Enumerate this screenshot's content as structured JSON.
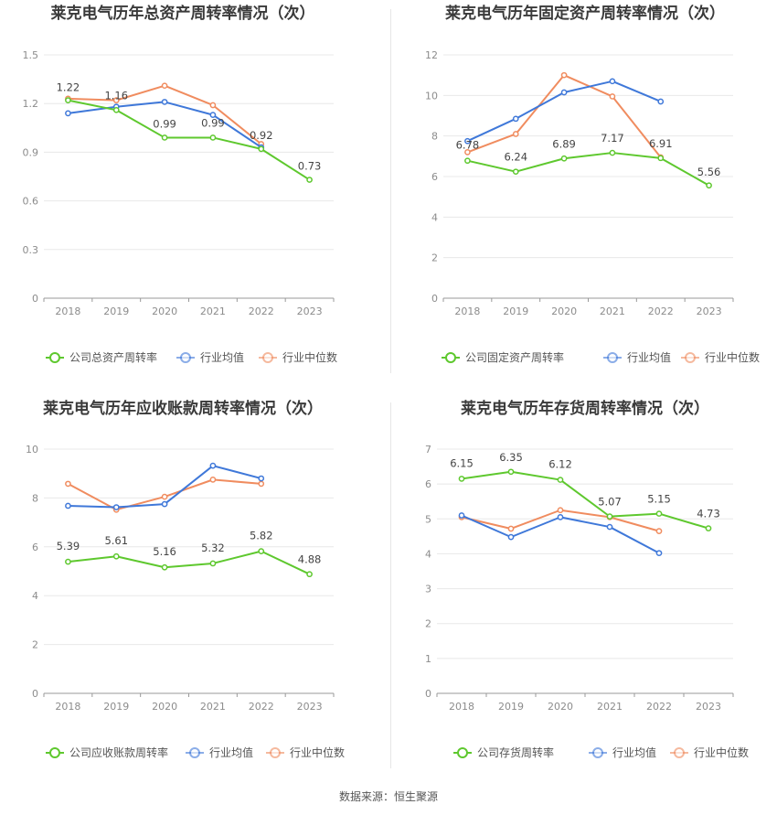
{
  "colors": {
    "company": "#5ec82e",
    "industry_avg": "#3f78d9",
    "industry_median": "#f08c5f",
    "grid": "#e8e8e8",
    "axis": "#999999"
  },
  "source": "数据来源：恒生聚源",
  "chart_data": [
    {
      "type": "line",
      "title": "莱克电气历年总资产周转率情况（次）",
      "categories": [
        "2018",
        "2019",
        "2020",
        "2021",
        "2022",
        "2023"
      ],
      "ylim": [
        0,
        1.5
      ],
      "yticks": [
        "0",
        "0.3",
        "0.6",
        "0.9",
        "1.2",
        "1.5"
      ],
      "grid": true,
      "legend_position": "bottom",
      "series": [
        {
          "name": "公司总资产周转率",
          "role": "company",
          "values": [
            1.22,
            1.16,
            0.99,
            0.99,
            0.92,
            0.73
          ],
          "labels": [
            "1.22",
            "1.16",
            "0.99",
            "0.99",
            "0.92",
            "0.73"
          ]
        },
        {
          "name": "行业均值",
          "role": "industry_avg",
          "values": [
            1.14,
            1.18,
            1.21,
            1.13,
            0.93,
            null
          ]
        },
        {
          "name": "行业中位数",
          "role": "industry_median",
          "values": [
            1.23,
            1.22,
            1.31,
            1.19,
            0.95,
            null
          ]
        }
      ]
    },
    {
      "type": "line",
      "title": "莱克电气历年固定资产周转率情况（次）",
      "categories": [
        "2018",
        "2019",
        "2020",
        "2021",
        "2022",
        "2023"
      ],
      "ylim": [
        0,
        12
      ],
      "yticks": [
        "0",
        "2",
        "4",
        "6",
        "8",
        "10",
        "12"
      ],
      "grid": true,
      "legend_position": "bottom",
      "series": [
        {
          "name": "公司固定资产周转率",
          "role": "company",
          "values": [
            6.78,
            6.24,
            6.89,
            7.17,
            6.91,
            5.56
          ],
          "labels": [
            "6.78",
            "6.24",
            "6.89",
            "7.17",
            "6.91",
            "5.56"
          ]
        },
        {
          "name": "行业均值",
          "role": "industry_avg",
          "values": [
            7.75,
            8.85,
            10.15,
            10.7,
            9.7,
            null
          ]
        },
        {
          "name": "行业中位数",
          "role": "industry_median",
          "values": [
            7.2,
            8.1,
            11.0,
            9.95,
            6.95,
            null
          ]
        }
      ]
    },
    {
      "type": "line",
      "title": "莱克电气历年应收账款周转率情况（次）",
      "categories": [
        "2018",
        "2019",
        "2020",
        "2021",
        "2022",
        "2023"
      ],
      "ylim": [
        0,
        10
      ],
      "yticks": [
        "0",
        "2",
        "4",
        "6",
        "8",
        "10"
      ],
      "grid": true,
      "legend_position": "bottom",
      "series": [
        {
          "name": "公司应收账款周转率",
          "role": "company",
          "values": [
            5.39,
            5.61,
            5.16,
            5.32,
            5.82,
            4.88
          ],
          "labels": [
            "5.39",
            "5.61",
            "5.16",
            "5.32",
            "5.82",
            "4.88"
          ]
        },
        {
          "name": "行业均值",
          "role": "industry_avg",
          "values": [
            7.68,
            7.62,
            7.75,
            9.32,
            8.8,
            null
          ]
        },
        {
          "name": "行业中位数",
          "role": "industry_median",
          "values": [
            8.58,
            7.52,
            8.05,
            8.75,
            8.58,
            null
          ]
        }
      ]
    },
    {
      "type": "line",
      "title": "莱克电气历年存货周转率情况（次）",
      "categories": [
        "2018",
        "2019",
        "2020",
        "2021",
        "2022",
        "2023"
      ],
      "ylim": [
        0,
        7
      ],
      "yticks": [
        "0",
        "1",
        "2",
        "3",
        "4",
        "5",
        "6",
        "7"
      ],
      "grid": true,
      "legend_position": "bottom",
      "series": [
        {
          "name": "公司存货周转率",
          "role": "company",
          "values": [
            6.15,
            6.35,
            6.12,
            5.07,
            5.15,
            4.73
          ],
          "labels": [
            "6.15",
            "6.35",
            "6.12",
            "5.07",
            "5.15",
            "4.73"
          ]
        },
        {
          "name": "行业均值",
          "role": "industry_avg",
          "values": [
            5.1,
            4.48,
            5.05,
            4.77,
            4.02,
            null
          ]
        },
        {
          "name": "行业中位数",
          "role": "industry_median",
          "values": [
            5.05,
            4.72,
            5.25,
            5.05,
            4.65,
            null
          ]
        }
      ]
    }
  ]
}
